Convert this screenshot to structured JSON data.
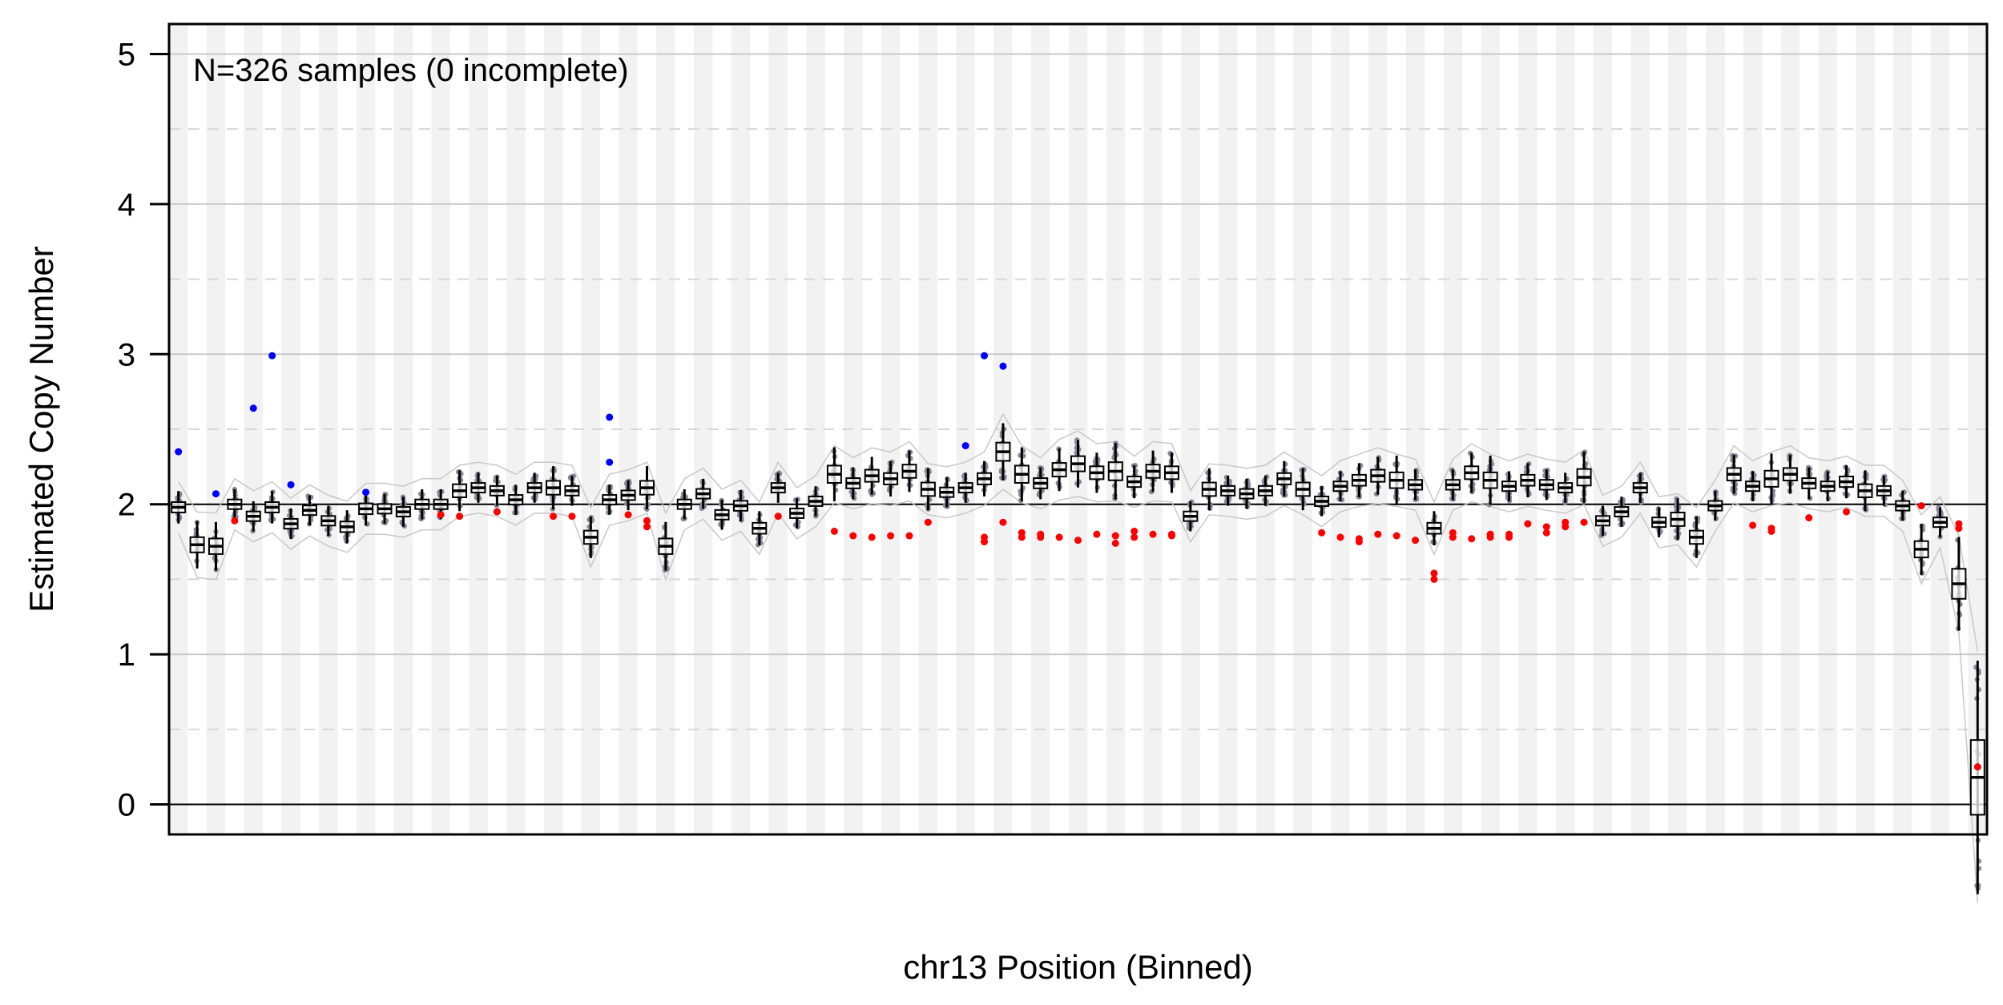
{
  "chart_data": {
    "type": "box",
    "annotation": "N=326 samples (0 incomplete)",
    "xlabel": "chr13 Position (Binned)",
    "ylabel": "Estimated Copy Number",
    "ylim": [
      -0.2,
      5.2
    ],
    "yticks": [
      0,
      1,
      2,
      3,
      4,
      5
    ],
    "ytick_labels": [
      "0",
      "1",
      "2",
      "3",
      "4",
      "5"
    ],
    "reference_line": 2,
    "dashed_gridlines": [
      0.5,
      1.5,
      2.5,
      3.5,
      4.5
    ],
    "alternating_bin_shading": true,
    "colors": {
      "box": "#000000",
      "points": "#888899",
      "high_outlier": "#0000ff",
      "low_outlier": "#ff0000",
      "connector": "#c8c8c8",
      "bin_shade": "#f2f2f2"
    },
    "medians": [
      1.98,
      1.73,
      1.72,
      2.0,
      1.92,
      1.98,
      1.87,
      1.96,
      1.89,
      1.85,
      1.97,
      1.97,
      1.95,
      2.0,
      2.0,
      2.09,
      2.11,
      2.09,
      2.03,
      2.11,
      2.11,
      2.09,
      1.78,
      2.03,
      2.06,
      2.11,
      1.72,
      2.0,
      2.07,
      1.93,
      1.99,
      1.84,
      2.11,
      1.94,
      2.02,
      2.2,
      2.14,
      2.19,
      2.17,
      2.22,
      2.1,
      2.08,
      2.11,
      2.17,
      2.35,
      2.2,
      2.14,
      2.23,
      2.27,
      2.21,
      2.22,
      2.15,
      2.22,
      2.21,
      1.92,
      2.1,
      2.09,
      2.07,
      2.09,
      2.17,
      2.1,
      2.02,
      2.12,
      2.16,
      2.19,
      2.16,
      2.13,
      1.84,
      2.13,
      2.21,
      2.16,
      2.12,
      2.16,
      2.13,
      2.11,
      2.18,
      1.89,
      1.95,
      2.11,
      1.88,
      1.9,
      1.78,
      1.99,
      2.2,
      2.12,
      2.17,
      2.2,
      2.14,
      2.12,
      2.15,
      2.09,
      2.09,
      1.99,
      1.7,
      1.88,
      1.47,
      0.18
    ],
    "high_outliers": [
      [
        0,
        2.35
      ],
      [
        2,
        2.07
      ],
      [
        4,
        2.64
      ],
      [
        5,
        2.99
      ],
      [
        6,
        2.13
      ],
      [
        10,
        2.08
      ],
      [
        23,
        2.58
      ],
      [
        23,
        2.28
      ],
      [
        42,
        2.39
      ],
      [
        43,
        2.99
      ],
      [
        44,
        2.92
      ]
    ],
    "low_outliers": [
      [
        3,
        1.89
      ],
      [
        14,
        1.93
      ],
      [
        15,
        1.92
      ],
      [
        17,
        1.95
      ],
      [
        20,
        1.92
      ],
      [
        21,
        1.92
      ],
      [
        24,
        1.93
      ],
      [
        25,
        1.89
      ],
      [
        25,
        1.85
      ],
      [
        32,
        1.92
      ],
      [
        35,
        1.82
      ],
      [
        36,
        1.79
      ],
      [
        37,
        1.78
      ],
      [
        38,
        1.79
      ],
      [
        39,
        1.79
      ],
      [
        40,
        1.88
      ],
      [
        43,
        1.78
      ],
      [
        43,
        1.75
      ],
      [
        44,
        1.88
      ],
      [
        45,
        1.81
      ],
      [
        45,
        1.78
      ],
      [
        46,
        1.8
      ],
      [
        46,
        1.78
      ],
      [
        47,
        1.78
      ],
      [
        48,
        1.76
      ],
      [
        49,
        1.8
      ],
      [
        50,
        1.79
      ],
      [
        50,
        1.74
      ],
      [
        51,
        1.82
      ],
      [
        51,
        1.78
      ],
      [
        52,
        1.8
      ],
      [
        53,
        1.8
      ],
      [
        53,
        1.79
      ],
      [
        61,
        1.81
      ],
      [
        62,
        1.78
      ],
      [
        63,
        1.77
      ],
      [
        63,
        1.75
      ],
      [
        64,
        1.8
      ],
      [
        65,
        1.79
      ],
      [
        66,
        1.76
      ],
      [
        67,
        1.54
      ],
      [
        67,
        1.5
      ],
      [
        68,
        1.81
      ],
      [
        68,
        1.78
      ],
      [
        69,
        1.77
      ],
      [
        70,
        1.8
      ],
      [
        70,
        1.78
      ],
      [
        71,
        1.8
      ],
      [
        71,
        1.78
      ],
      [
        72,
        1.87
      ],
      [
        73,
        1.85
      ],
      [
        73,
        1.81
      ],
      [
        74,
        1.88
      ],
      [
        74,
        1.85
      ],
      [
        75,
        1.88
      ],
      [
        84,
        1.86
      ],
      [
        85,
        1.84
      ],
      [
        85,
        1.82
      ],
      [
        87,
        1.91
      ],
      [
        89,
        1.95
      ],
      [
        93,
        1.99
      ],
      [
        95,
        1.87
      ],
      [
        95,
        1.84
      ],
      [
        96,
        0.25
      ]
    ]
  }
}
